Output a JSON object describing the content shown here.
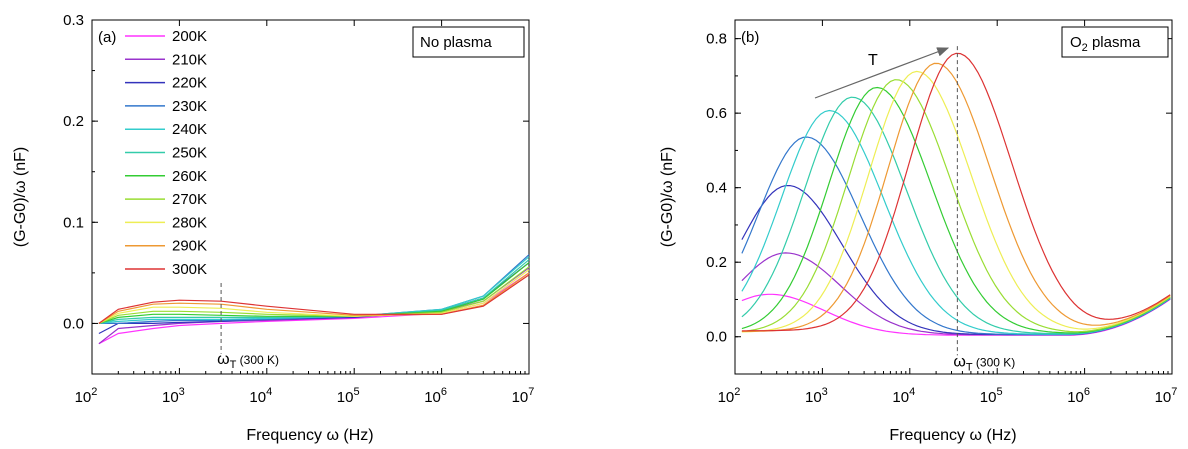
{
  "colors": [
    "#ff33ff",
    "#9933cc",
    "#3333bb",
    "#3377cc",
    "#33cccc",
    "#33ccaa",
    "#33cc33",
    "#99dd33",
    "#eeee55",
    "#ee9933",
    "#dd3333"
  ],
  "legend": [
    "200K",
    "210K",
    "220K",
    "230K",
    "240K",
    "250K",
    "260K",
    "270K",
    "280K",
    "290K",
    "300K"
  ],
  "chart_data": [
    {
      "type": "line",
      "panel": "(a)",
      "box_label": "No plasma",
      "xlabel": "Frequency ω (Hz)",
      "ylabel": "(G-G0)/ω (nF)",
      "xscale": "log",
      "xlim": [
        100,
        10000000
      ],
      "ylim": [
        -0.05,
        0.3
      ],
      "yticks": [
        "0.0",
        "0.1",
        "0.2",
        "0.3"
      ],
      "annotation": "ωT (300 K)",
      "marker_x": 3000,
      "series": [
        {
          "name": "200K",
          "x": [
            120,
            200,
            500,
            1000,
            3000,
            10000,
            100000,
            1000000,
            3000000,
            10000000
          ],
          "y": [
            -0.02,
            -0.01,
            -0.005,
            -0.002,
            0.0,
            0.002,
            0.005,
            0.01,
            0.02,
            0.05
          ]
        },
        {
          "name": "210K",
          "x": [
            120,
            200,
            500,
            1000,
            3000,
            10000,
            100000,
            1000000,
            3000000,
            10000000
          ],
          "y": [
            -0.02,
            -0.005,
            -0.002,
            0.0,
            0.002,
            0.003,
            0.006,
            0.012,
            0.022,
            0.055
          ]
        },
        {
          "name": "220K",
          "x": [
            120,
            200,
            500,
            1000,
            3000,
            10000,
            100000,
            1000000,
            3000000,
            10000000
          ],
          "y": [
            -0.01,
            0.0,
            0.0,
            0.001,
            0.002,
            0.004,
            0.006,
            0.013,
            0.025,
            0.06
          ]
        },
        {
          "name": "230K",
          "x": [
            120,
            200,
            500,
            1000,
            3000,
            10000,
            100000,
            1000000,
            3000000,
            10000000
          ],
          "y": [
            0.0,
            0.0,
            0.002,
            0.003,
            0.003,
            0.004,
            0.007,
            0.014,
            0.027,
            0.068
          ]
        },
        {
          "name": "240K",
          "x": [
            120,
            200,
            500,
            1000,
            3000,
            10000,
            100000,
            1000000,
            3000000,
            10000000
          ],
          "y": [
            0.0,
            0.002,
            0.004,
            0.004,
            0.004,
            0.005,
            0.007,
            0.014,
            0.027,
            0.066
          ]
        },
        {
          "name": "250K",
          "x": [
            120,
            200,
            500,
            1000,
            3000,
            10000,
            100000,
            1000000,
            3000000,
            10000000
          ],
          "y": [
            0.0,
            0.004,
            0.006,
            0.006,
            0.006,
            0.006,
            0.007,
            0.013,
            0.025,
            0.063
          ]
        },
        {
          "name": "260K",
          "x": [
            120,
            200,
            500,
            1000,
            3000,
            10000,
            100000,
            1000000,
            3000000,
            10000000
          ],
          "y": [
            0.0,
            0.006,
            0.009,
            0.009,
            0.008,
            0.007,
            0.007,
            0.012,
            0.024,
            0.06
          ]
        },
        {
          "name": "270K",
          "x": [
            120,
            200,
            500,
            1000,
            3000,
            10000,
            100000,
            1000000,
            3000000,
            10000000
          ],
          "y": [
            0.0,
            0.008,
            0.012,
            0.012,
            0.011,
            0.009,
            0.007,
            0.011,
            0.022,
            0.056
          ]
        },
        {
          "name": "280K",
          "x": [
            120,
            200,
            500,
            1000,
            3000,
            10000,
            100000,
            1000000,
            3000000,
            10000000
          ],
          "y": [
            0.0,
            0.01,
            0.016,
            0.016,
            0.015,
            0.011,
            0.007,
            0.01,
            0.02,
            0.053
          ]
        },
        {
          "name": "290K",
          "x": [
            120,
            200,
            500,
            1000,
            3000,
            10000,
            100000,
            1000000,
            3000000,
            10000000
          ],
          "y": [
            0.0,
            0.012,
            0.019,
            0.02,
            0.019,
            0.014,
            0.008,
            0.009,
            0.018,
            0.05
          ]
        },
        {
          "name": "300K",
          "x": [
            120,
            200,
            500,
            1000,
            3000,
            10000,
            100000,
            1000000,
            3000000,
            10000000
          ],
          "y": [
            0.0,
            0.014,
            0.021,
            0.023,
            0.022,
            0.017,
            0.009,
            0.009,
            0.017,
            0.048
          ]
        }
      ]
    },
    {
      "type": "line",
      "panel": "(b)",
      "box_label": "O2 plasma",
      "xlabel": "Frequency ω (Hz)",
      "ylabel": "(G-G0)/ω (nF)",
      "xscale": "log",
      "xlim": [
        100,
        10000000
      ],
      "ylim": [
        -0.1,
        0.85
      ],
      "yticks": [
        "0.0",
        "0.2",
        "0.4",
        "0.6",
        "0.8"
      ],
      "annotation": "ωT (300 K)",
      "arrow_label": "T",
      "marker_x": 35000,
      "series": [
        {
          "name": "200K",
          "peak_x": 250,
          "peak_y": 0.11,
          "floor": 0.004
        },
        {
          "name": "210K",
          "peak_x": 380,
          "peak_y": 0.22,
          "floor": 0.005
        },
        {
          "name": "220K",
          "peak_x": 400,
          "peak_y": 0.4,
          "floor": 0.006
        },
        {
          "name": "230K",
          "peak_x": 650,
          "peak_y": 0.53,
          "floor": 0.006
        },
        {
          "name": "240K",
          "peak_x": 1200,
          "peak_y": 0.6,
          "floor": 0.007
        },
        {
          "name": "250K",
          "peak_x": 2200,
          "peak_y": 0.635,
          "floor": 0.008
        },
        {
          "name": "260K",
          "peak_x": 4200,
          "peak_y": 0.66,
          "floor": 0.009
        },
        {
          "name": "270K",
          "peak_x": 7000,
          "peak_y": 0.68,
          "floor": 0.01
        },
        {
          "name": "280K",
          "peak_x": 12000,
          "peak_y": 0.7,
          "floor": 0.012
        },
        {
          "name": "290K",
          "peak_x": 20000,
          "peak_y": 0.72,
          "floor": 0.014
        },
        {
          "name": "300K",
          "peak_x": 35000,
          "peak_y": 0.745,
          "floor": 0.016
        }
      ]
    }
  ]
}
